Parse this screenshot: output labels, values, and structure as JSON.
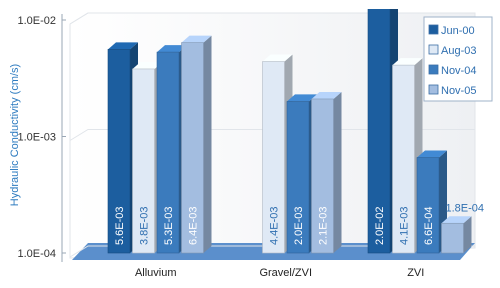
{
  "chart_data": {
    "type": "bar3d",
    "y_label": "Hydraulic Conductivity (cm/s)",
    "log_scale": true,
    "grid": true,
    "legend_position": "top-right",
    "categories": [
      "Alluvium",
      "Gravel/ZVI",
      "ZVI"
    ],
    "ylim": [
      0.0001,
      0.01
    ],
    "yticks": [
      {
        "value": 0.0001,
        "label": "1.0E-04"
      },
      {
        "value": 0.001,
        "label": "1.0E-03"
      },
      {
        "value": 0.01,
        "label": "1.0E-02"
      }
    ],
    "series": [
      {
        "name": "Jun-00",
        "color": "#1c5e9f",
        "values": [
          0.0056,
          null,
          0.02
        ],
        "value_labels": [
          "5.6E-03",
          null,
          "2.0E-02"
        ]
      },
      {
        "name": "Aug-03",
        "color": "#dfe9f5",
        "values": [
          0.0038,
          0.0044,
          0.0041
        ],
        "value_labels": [
          "3.8E-03",
          "4.4E-03",
          "4.1E-03"
        ]
      },
      {
        "name": "Nov-04",
        "color": "#3b7bbd",
        "values": [
          0.0053,
          0.002,
          0.00066
        ],
        "value_labels": [
          "5.3E-03",
          "2.0E-03",
          "6.6E-04"
        ]
      },
      {
        "name": "Nov-05",
        "color": "#a3bde0",
        "values": [
          0.0064,
          0.0021,
          0.00018
        ],
        "value_labels": [
          "6.4E-03",
          "2.1E-03",
          "1.8E-04"
        ]
      }
    ]
  }
}
